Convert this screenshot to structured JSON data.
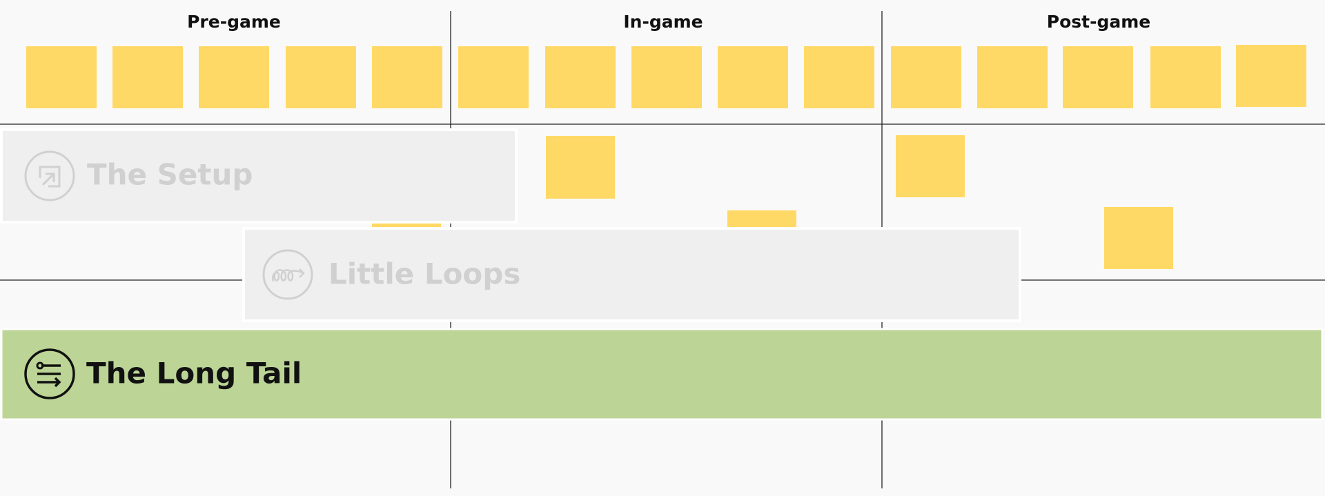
{
  "columns": [
    "Pre-game",
    "In-game",
    "Post-game"
  ],
  "bands": [
    {
      "label": "The Setup"
    },
    {
      "label": "Little Loops"
    },
    {
      "label": "The Long Tail"
    }
  ]
}
